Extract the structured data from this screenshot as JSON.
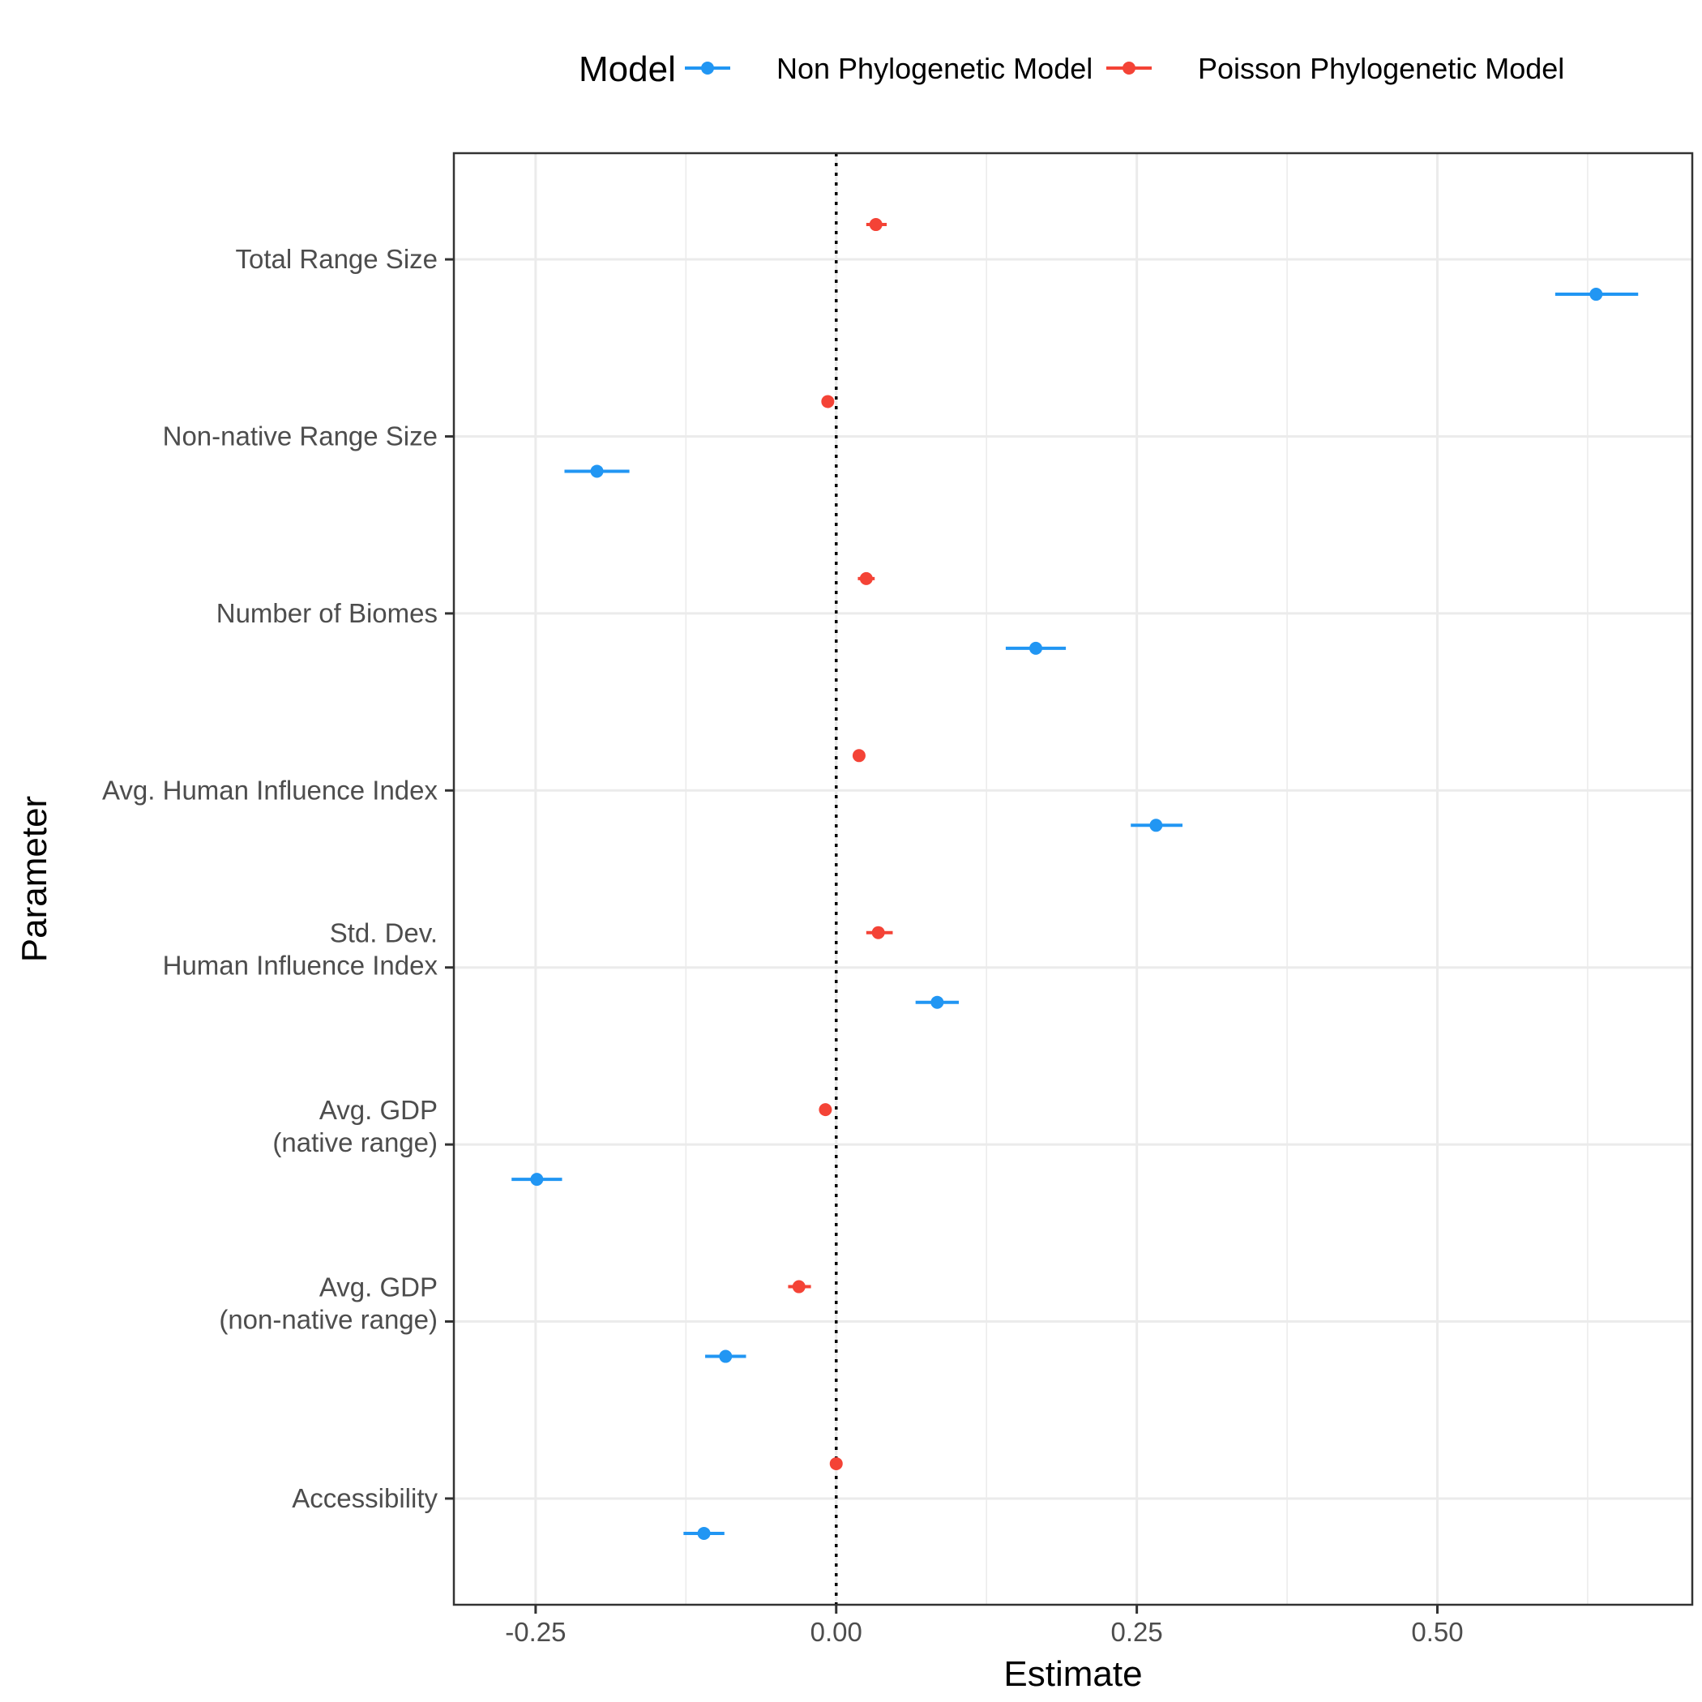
{
  "chart_data": {
    "type": "forest",
    "xlabel": "Estimate",
    "ylabel": "Parameter",
    "xlim": [
      -0.318,
      0.712
    ],
    "x_ticks": [
      -0.25,
      0.0,
      0.25,
      0.5
    ],
    "x_tick_labels": [
      "-0.25",
      "0.00",
      "0.25",
      "0.50"
    ],
    "reference_line": 0,
    "grid": true,
    "legend": {
      "title": "Model",
      "position": "top"
    },
    "categories": [
      [
        "Total Range Size"
      ],
      [
        "Non-native Range Size"
      ],
      [
        "Number of Biomes"
      ],
      [
        "Avg. Human Influence Index"
      ],
      [
        "Std. Dev.",
        "Human Influence Index"
      ],
      [
        "Avg. GDP",
        "(native range)"
      ],
      [
        "Avg. GDP",
        "(non-native range)"
      ],
      [
        "Accessibility"
      ]
    ],
    "series": [
      {
        "name": "Non Phylogenetic Model",
        "color": "#2196f3",
        "estimate": [
          0.632,
          -0.199,
          0.166,
          0.266,
          0.084,
          -0.249,
          -0.092,
          -0.11
        ],
        "lower": [
          0.598,
          -0.226,
          0.141,
          0.245,
          0.066,
          -0.27,
          -0.109,
          -0.127
        ],
        "upper": [
          0.667,
          -0.172,
          0.191,
          0.288,
          0.102,
          -0.228,
          -0.075,
          -0.093
        ]
      },
      {
        "name": "Poisson Phylogenetic Model",
        "color": "#f44336",
        "estimate": [
          0.033,
          -0.007,
          0.025,
          0.019,
          0.035,
          -0.009,
          -0.031,
          0.0
        ],
        "lower": [
          0.025,
          -0.011,
          0.018,
          0.015,
          0.025,
          -0.012,
          -0.04,
          -0.003
        ],
        "upper": [
          0.042,
          -0.003,
          0.032,
          0.023,
          0.047,
          -0.006,
          -0.021,
          0.003
        ]
      }
    ]
  }
}
